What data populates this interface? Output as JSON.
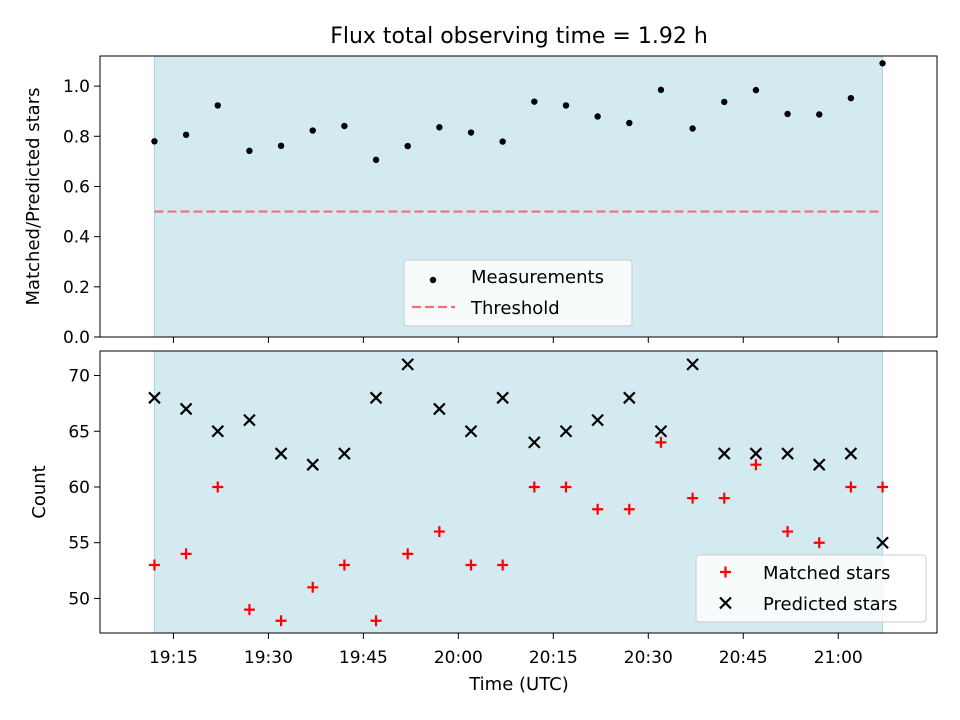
{
  "figure": {
    "title": "Flux total observing time = 1.92 h",
    "xlabel": "Time (UTC)"
  },
  "colors": {
    "band": "#d4eaf1",
    "band_edge": "#a9d6e0",
    "threshold": "#f07070",
    "matched": "#ff0000",
    "predicted": "#000000",
    "measurement": "#000000"
  },
  "chart_data": [
    {
      "type": "scatter",
      "title": "Flux total observing time = 1.92 h",
      "xlabel": "",
      "ylabel": "Matched/Predicted stars",
      "ylim": [
        0,
        1.12
      ],
      "yticks": [
        0.0,
        0.2,
        0.4,
        0.6,
        0.8,
        1.0
      ],
      "ytick_labels": [
        "0.0",
        "0.2",
        "0.4",
        "0.6",
        "0.8",
        "1.0"
      ],
      "xticks": [
        "19:15",
        "19:30",
        "19:45",
        "20:00",
        "20:15",
        "20:30",
        "20:45",
        "21:00"
      ],
      "shaded_span": [
        "19:12",
        "21:07"
      ],
      "threshold": {
        "value": 0.5,
        "x": [
          "19:12",
          "21:07"
        ]
      },
      "x": [
        "19:12",
        "19:17",
        "19:22",
        "19:27",
        "19:32",
        "19:37",
        "19:42",
        "19:47",
        "19:52",
        "19:57",
        "20:02",
        "20:07",
        "20:12",
        "20:17",
        "20:22",
        "20:27",
        "20:32",
        "20:37",
        "20:42",
        "20:47",
        "20:52",
        "20:57",
        "21:02",
        "21:07"
      ],
      "series": [
        {
          "name": "Measurements",
          "values": [
            0.78,
            0.806,
            0.923,
            0.742,
            0.762,
            0.823,
            0.841,
            0.706,
            0.761,
            0.836,
            0.815,
            0.779,
            0.938,
            0.923,
            0.879,
            0.853,
            0.985,
            0.831,
            0.937,
            0.984,
            0.889,
            0.887,
            0.952,
            1.091
          ]
        },
        {
          "name": "Threshold",
          "values": [
            0.5,
            0.5
          ]
        }
      ],
      "grid": false,
      "legend": "lower-center"
    },
    {
      "type": "scatter",
      "xlabel": "Time (UTC)",
      "ylabel": "Count",
      "ylim": [
        46.9,
        72.2
      ],
      "yticks": [
        50,
        55,
        60,
        65,
        70
      ],
      "ytick_labels": [
        "50",
        "55",
        "60",
        "65",
        "70"
      ],
      "xticks": [
        "19:15",
        "19:30",
        "19:45",
        "20:00",
        "20:15",
        "20:30",
        "20:45",
        "21:00"
      ],
      "shaded_span": [
        "19:12",
        "21:07"
      ],
      "x": [
        "19:12",
        "19:17",
        "19:22",
        "19:27",
        "19:32",
        "19:37",
        "19:42",
        "19:47",
        "19:52",
        "19:57",
        "20:02",
        "20:07",
        "20:12",
        "20:17",
        "20:22",
        "20:27",
        "20:32",
        "20:37",
        "20:42",
        "20:47",
        "20:52",
        "20:57",
        "21:02",
        "21:07"
      ],
      "series": [
        {
          "name": "Matched stars",
          "values": [
            53,
            54,
            60,
            49,
            48,
            51,
            53,
            48,
            54,
            56,
            53,
            53,
            60,
            60,
            58,
            58,
            64,
            59,
            59,
            62,
            56,
            55,
            60,
            60
          ]
        },
        {
          "name": "Predicted stars",
          "values": [
            68,
            67,
            65,
            66,
            63,
            62,
            63,
            68,
            71,
            67,
            65,
            68,
            64,
            65,
            66,
            68,
            65,
            71,
            63,
            63,
            63,
            62,
            63,
            55
          ]
        }
      ],
      "grid": false,
      "legend": "lower-right"
    }
  ]
}
